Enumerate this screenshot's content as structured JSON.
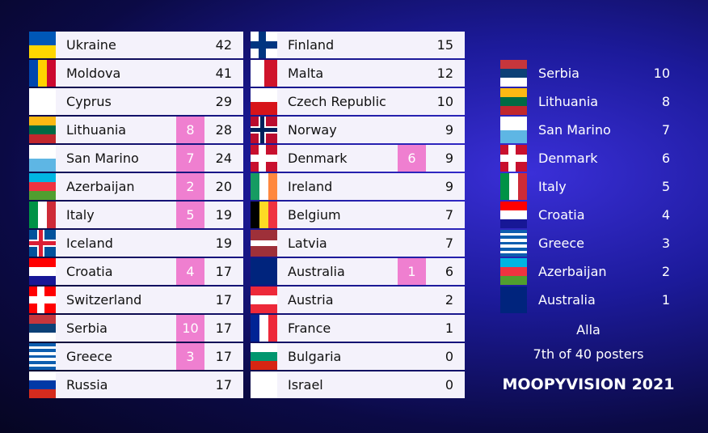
{
  "scoreboard": {
    "columns": [
      [
        {
          "country": "Ukraine",
          "total": 42
        },
        {
          "country": "Moldova",
          "total": 41
        },
        {
          "country": "Cyprus",
          "total": 29
        },
        {
          "country": "Lithuania",
          "received": 8,
          "total": 28
        },
        {
          "country": "San Marino",
          "received": 7,
          "total": 24
        },
        {
          "country": "Azerbaijan",
          "received": 2,
          "total": 20
        },
        {
          "country": "Italy",
          "received": 5,
          "total": 19
        },
        {
          "country": "Iceland",
          "total": 19
        },
        {
          "country": "Croatia",
          "received": 4,
          "total": 17
        },
        {
          "country": "Switzerland",
          "total": 17
        },
        {
          "country": "Serbia",
          "received": 10,
          "total": 17
        },
        {
          "country": "Greece",
          "received": 3,
          "total": 17
        },
        {
          "country": "Russia",
          "total": 17
        }
      ],
      [
        {
          "country": "Finland",
          "total": 15
        },
        {
          "country": "Malta",
          "total": 12
        },
        {
          "country": "Czech Republic",
          "total": 10
        },
        {
          "country": "Norway",
          "total": 9
        },
        {
          "country": "Denmark",
          "received": 6,
          "total": 9
        },
        {
          "country": "Ireland",
          "total": 9
        },
        {
          "country": "Belgium",
          "total": 7
        },
        {
          "country": "Latvia",
          "total": 7
        },
        {
          "country": "Australia",
          "received": 1,
          "total": 6
        },
        {
          "country": "Austria",
          "total": 2
        },
        {
          "country": "France",
          "total": 1
        },
        {
          "country": "Bulgaria",
          "total": 0
        },
        {
          "country": "Israel",
          "total": 0
        }
      ]
    ]
  },
  "votes": [
    {
      "country": "Serbia",
      "points": 10
    },
    {
      "country": "Lithuania",
      "points": 8
    },
    {
      "country": "San Marino",
      "points": 7
    },
    {
      "country": "Denmark",
      "points": 6
    },
    {
      "country": "Italy",
      "points": 5
    },
    {
      "country": "Croatia",
      "points": 4
    },
    {
      "country": "Greece",
      "points": 3
    },
    {
      "country": "Azerbaijan",
      "points": 2
    },
    {
      "country": "Australia",
      "points": 1
    }
  ],
  "footer": {
    "voter": "Alla",
    "position": "7th of 40 posters",
    "brand": "MOOPYVISION 2021"
  }
}
